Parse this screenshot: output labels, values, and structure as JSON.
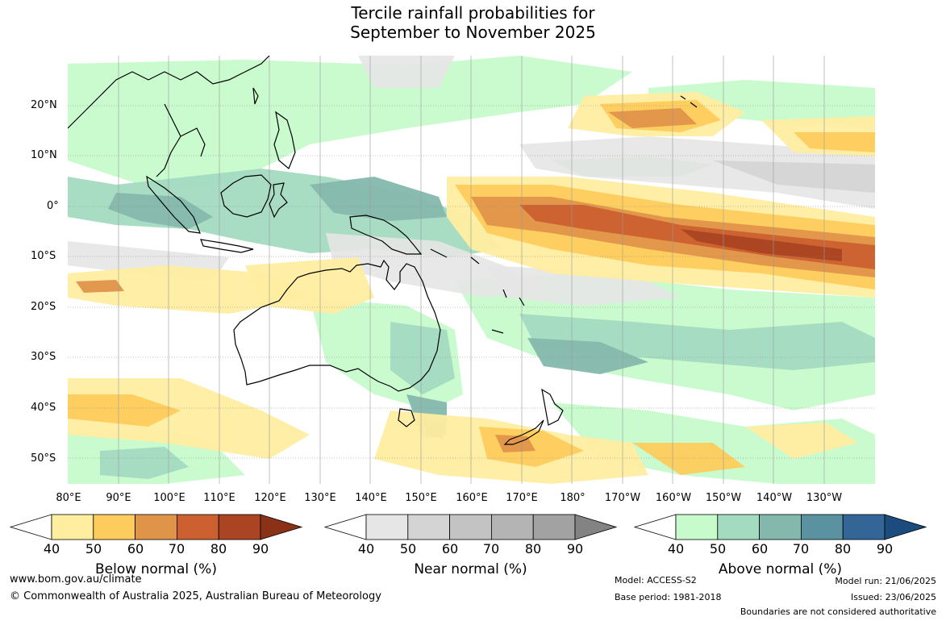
{
  "title": {
    "line1": "Tercile rainfall probabilities for",
    "line2": "September to November 2025"
  },
  "axes": {
    "lat_labels": [
      "20°N",
      "10°N",
      "0°",
      "10°S",
      "20°S",
      "30°S",
      "40°S",
      "50°S"
    ],
    "lon_labels": [
      "80°E",
      "90°E",
      "100°E",
      "110°E",
      "120°E",
      "130°E",
      "140°E",
      "150°E",
      "160°E",
      "170°E",
      "180°",
      "170°W",
      "160°W",
      "150°W",
      "140°W",
      "130°W"
    ]
  },
  "legend": {
    "ticks": [
      "40",
      "50",
      "60",
      "70",
      "80",
      "90"
    ],
    "below": {
      "title": "Below normal (%)",
      "colors": [
        "#ffeda0",
        "#fecc5c",
        "#e0944a",
        "#cc6030",
        "#aa4422",
        "#8b3118"
      ]
    },
    "near": {
      "title": "Near normal (%)",
      "colors": [
        "#e6e6e6",
        "#d4d4d4",
        "#c3c3c3",
        "#b4b4b4",
        "#a2a2a2",
        "#838383"
      ]
    },
    "above": {
      "title": "Above normal (%)",
      "colors": [
        "#c7fbcc",
        "#a3dbc1",
        "#85b8ad",
        "#5b92a2",
        "#336697",
        "#1c4b7e"
      ]
    }
  },
  "footer": {
    "url": "www.bom.gov.au/climate",
    "copyright": "© Commonwealth of Australia 2025, Australian Bureau of Meteorology",
    "model": "Model: ACCESS-S2",
    "base_period": "Base period: 1981-2018",
    "model_run": "Model run: 21/06/2025",
    "issued": "Issued: 23/06/2025",
    "disclaimer": "Boundaries are not considered authoritative"
  }
}
